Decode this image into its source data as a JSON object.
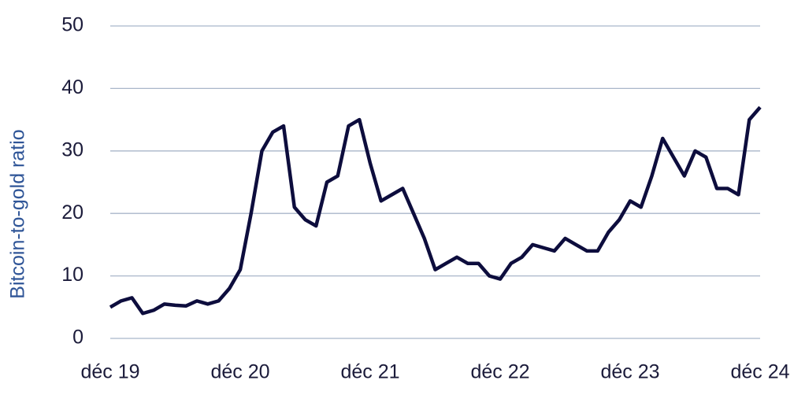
{
  "chart_data": {
    "type": "line",
    "y_label": "Bitcoin-to-gold ratio",
    "categories": [
      "déc 19",
      null,
      null,
      null,
      null,
      null,
      null,
      null,
      null,
      null,
      null,
      null,
      "déc 20",
      null,
      null,
      null,
      null,
      null,
      null,
      null,
      null,
      null,
      null,
      null,
      "déc 21",
      null,
      null,
      null,
      null,
      null,
      null,
      null,
      null,
      null,
      null,
      null,
      "déc 22",
      null,
      null,
      null,
      null,
      null,
      null,
      null,
      null,
      null,
      null,
      null,
      "déc 23",
      null,
      null,
      null,
      null,
      null,
      null,
      null,
      null,
      null,
      null,
      null,
      "déc 24"
    ],
    "series": [
      {
        "name": "Bitcoin-to-gold ratio",
        "color": "#0d0d3d",
        "values": [
          5,
          6,
          6.5,
          4,
          4.5,
          5.5,
          5.3,
          5.2,
          6,
          5.5,
          6,
          8,
          11,
          20,
          30,
          33,
          34,
          21,
          19,
          18,
          25,
          26,
          34,
          35,
          28,
          22,
          23,
          24,
          20,
          16,
          11,
          12,
          13,
          12,
          12,
          10,
          9.5,
          12,
          13,
          15,
          14.5,
          14,
          16,
          15,
          14,
          14,
          17,
          19,
          22,
          21,
          26,
          32,
          29,
          26,
          30,
          29,
          24,
          24,
          23,
          35,
          37
        ]
      }
    ],
    "ylim": [
      0,
      50
    ],
    "yticks": [
      0,
      10,
      20,
      30,
      40,
      50
    ],
    "grid": true
  }
}
